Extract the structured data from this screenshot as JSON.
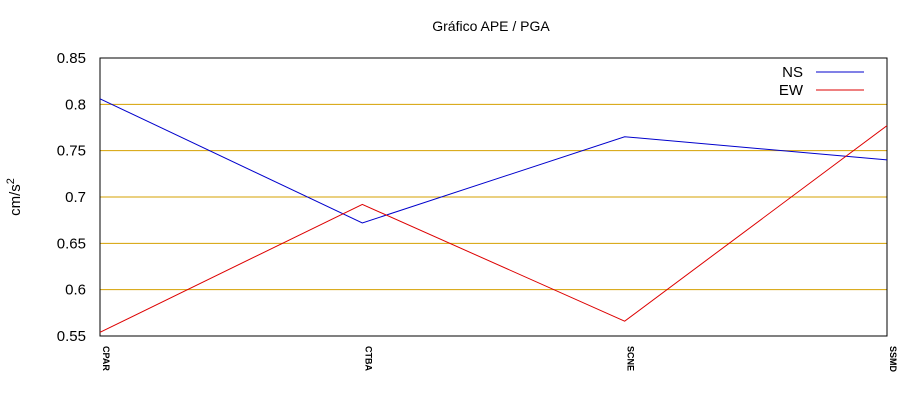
{
  "chart_data": {
    "type": "line",
    "title": "Gráfico  APE / PGA",
    "ylabel": "cm/s",
    "ylabel_superscript": "2",
    "categories": [
      "CPAR",
      "CTBA",
      "SCNE",
      "SSMD"
    ],
    "series": [
      {
        "name": "NS",
        "color": "#0000cc",
        "values": [
          0.806,
          0.672,
          0.765,
          0.74
        ]
      },
      {
        "name": "EW",
        "color": "#dd0000",
        "values": [
          0.554,
          0.692,
          0.566,
          0.777
        ]
      }
    ],
    "ylim": [
      0.55,
      0.85
    ],
    "yticks": [
      "0.55",
      "0.6",
      "0.65",
      "0.7",
      "0.75",
      "0.8",
      "0.85"
    ],
    "grid": true,
    "grid_color": "#d4a000",
    "legend_position": "top-right"
  }
}
